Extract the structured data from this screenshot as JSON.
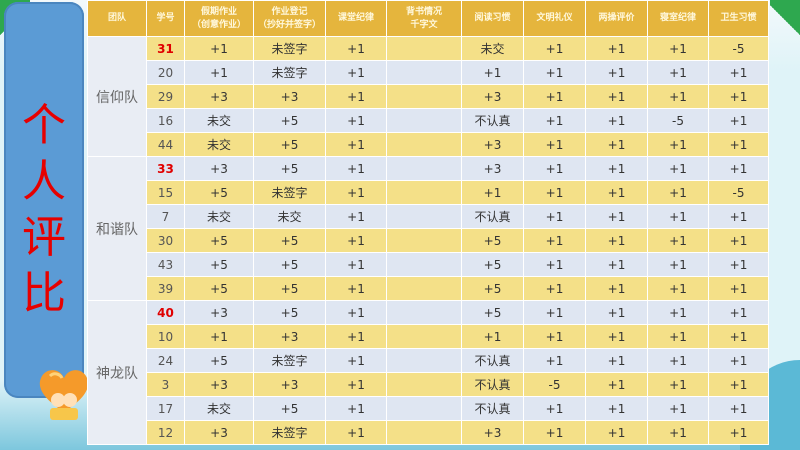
{
  "side_title": [
    "个",
    "人",
    "评",
    "比"
  ],
  "headers": [
    [
      "团队"
    ],
    [
      "学号"
    ],
    [
      "假期作业",
      "（创意作业）"
    ],
    [
      "作业登记",
      "（抄好并签字）"
    ],
    [
      "课堂纪律"
    ],
    [
      "背书情况",
      "千字文"
    ],
    [
      "阅读习惯"
    ],
    [
      "文明礼仪"
    ],
    [
      "两操评价"
    ],
    [
      "寝室纪律"
    ],
    [
      "卫生习惯"
    ]
  ],
  "teams": [
    {
      "name": "信仰队",
      "rows": [
        {
          "id": "31",
          "highlight": true,
          "scores": [
            "+1",
            "未签字",
            "+1",
            "",
            "未交",
            "+1",
            "+1",
            "+1",
            "-5"
          ]
        },
        {
          "id": "20",
          "highlight": false,
          "scores": [
            "+1",
            "未签字",
            "+1",
            "",
            "+1",
            "+1",
            "+1",
            "+1",
            "+1"
          ]
        },
        {
          "id": "29",
          "highlight": false,
          "scores": [
            "+3",
            "+3",
            "+1",
            "",
            "+3",
            "+1",
            "+1",
            "+1",
            "+1"
          ]
        },
        {
          "id": "16",
          "highlight": false,
          "scores": [
            "未交",
            "+5",
            "+1",
            "",
            "不认真",
            "+1",
            "+1",
            "-5",
            "+1"
          ]
        },
        {
          "id": "44",
          "highlight": false,
          "scores": [
            "未交",
            "+5",
            "+1",
            "",
            "+3",
            "+1",
            "+1",
            "+1",
            "+1"
          ]
        }
      ]
    },
    {
      "name": "和谐队",
      "rows": [
        {
          "id": "33",
          "highlight": true,
          "scores": [
            "+3",
            "+5",
            "+1",
            "",
            "+3",
            "+1",
            "+1",
            "+1",
            "+1"
          ]
        },
        {
          "id": "15",
          "highlight": false,
          "scores": [
            "+5",
            "未签字",
            "+1",
            "",
            "+1",
            "+1",
            "+1",
            "+1",
            "-5"
          ]
        },
        {
          "id": "7",
          "highlight": false,
          "scores": [
            "未交",
            "未交",
            "+1",
            "",
            "不认真",
            "+1",
            "+1",
            "+1",
            "+1"
          ]
        },
        {
          "id": "30",
          "highlight": false,
          "scores": [
            "+5",
            "+5",
            "+1",
            "",
            "+5",
            "+1",
            "+1",
            "+1",
            "+1"
          ]
        },
        {
          "id": "43",
          "highlight": false,
          "scores": [
            "+5",
            "+5",
            "+1",
            "",
            "+5",
            "+1",
            "+1",
            "+1",
            "+1"
          ]
        },
        {
          "id": "39",
          "highlight": false,
          "scores": [
            "+5",
            "+5",
            "+1",
            "",
            "+5",
            "+1",
            "+1",
            "+1",
            "+1"
          ]
        }
      ]
    },
    {
      "name": "神龙队",
      "rows": [
        {
          "id": "40",
          "highlight": true,
          "scores": [
            "+3",
            "+5",
            "+1",
            "",
            "+5",
            "+1",
            "+1",
            "+1",
            "+1"
          ]
        },
        {
          "id": "10",
          "highlight": false,
          "scores": [
            "+1",
            "+3",
            "+1",
            "",
            "+1",
            "+1",
            "+1",
            "+1",
            "+1"
          ]
        },
        {
          "id": "24",
          "highlight": false,
          "scores": [
            "+5",
            "未签字",
            "+1",
            "",
            "不认真",
            "+1",
            "+1",
            "+1",
            "+1"
          ]
        },
        {
          "id": "3",
          "highlight": false,
          "scores": [
            "+3",
            "+3",
            "+1",
            "",
            "不认真",
            "-5",
            "+1",
            "+1",
            "+1"
          ]
        },
        {
          "id": "17",
          "highlight": false,
          "scores": [
            "未交",
            "+5",
            "+1",
            "",
            "不认真",
            "+1",
            "+1",
            "+1",
            "+1"
          ]
        },
        {
          "id": "12",
          "highlight": false,
          "scores": [
            "+3",
            "未签字",
            "+1",
            "",
            "+3",
            "+1",
            "+1",
            "+1",
            "+1"
          ]
        }
      ]
    }
  ],
  "colors": {
    "header": "#e5b53d",
    "row_yellow": "#f4e088",
    "row_blue": "#dfe6f2",
    "side_panel": "#5b9bd5",
    "title_red": "#e60000",
    "highlight_red": "#e00000"
  }
}
